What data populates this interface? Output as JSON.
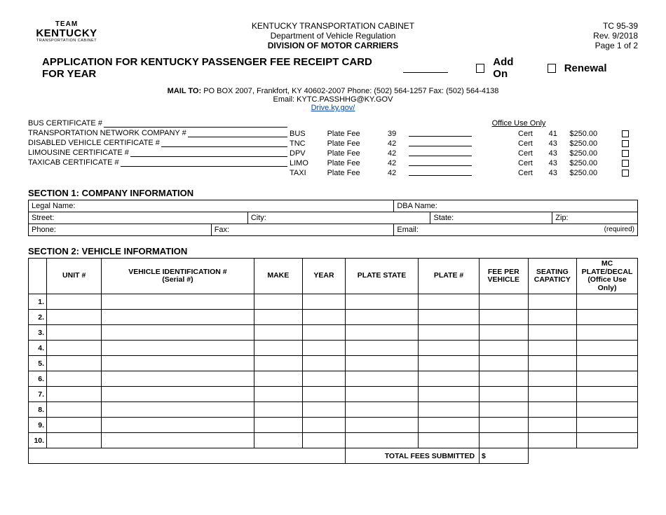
{
  "header": {
    "logo": {
      "line1": "TEAM",
      "line2": "KENTUCKY",
      "sub": "TRANSPORTATION CABINET"
    },
    "center": {
      "l1": "KENTUCKY TRANSPORTATION CABINET",
      "l2": "Department of Vehicle Regulation",
      "l3": "DIVISION OF MOTOR CARRIERS"
    },
    "right": {
      "form_no": "TC 95-39",
      "rev": "Rev. 9/2018",
      "page": "Page 1 of 2"
    }
  },
  "title": {
    "text": "APPLICATION FOR KENTUCKY PASSENGER FEE RECEIPT CARD FOR YEAR",
    "addon": "Add On",
    "renewal": "Renewal"
  },
  "mail": {
    "l1_label": "MAIL TO:",
    "l1": "PO BOX 2007, Frankfort, KY 40602-2007  Phone: (502) 564-1257 Fax: (502) 564-4138",
    "l2": "Email: KYTC.PASSHHG@KY.GOV",
    "link": "Drive.ky.gov/"
  },
  "certs": [
    "BUS CERTIFICATE #",
    "TRANSPORTATION NETWORK COMPANY #",
    "DISABLED VEHICLE CERTIFICATE #",
    "LIMOUSINE CERTIFICATE #",
    "TAXICAB CERTIFICATE #"
  ],
  "office": {
    "title": "Office Use Only",
    "rows": [
      {
        "code": "BUS",
        "label": "Plate Fee",
        "n1": "39",
        "cert": "Cert",
        "n2": "41",
        "amt": "$250.00"
      },
      {
        "code": "TNC",
        "label": "Plate Fee",
        "n1": "42",
        "cert": "Cert",
        "n2": "43",
        "amt": "$250.00"
      },
      {
        "code": "DPV",
        "label": "Plate Fee",
        "n1": "42",
        "cert": "Cert",
        "n2": "43",
        "amt": "$250.00"
      },
      {
        "code": "LIMO",
        "label": "Plate Fee",
        "n1": "42",
        "cert": "Cert",
        "n2": "43",
        "amt": "$250.00"
      },
      {
        "code": "TAXI",
        "label": "Plate Fee",
        "n1": "42",
        "cert": "Cert",
        "n2": "43",
        "amt": "$250.00"
      }
    ]
  },
  "section1": {
    "heading": "SECTION 1: COMPANY INFORMATION",
    "labels": {
      "legal": "Legal Name:",
      "dba": "DBA Name:",
      "street": "Street:",
      "city": "City:",
      "state": "State:",
      "zip": "Zip:",
      "phone": "Phone:",
      "fax": "Fax:",
      "email": "Email:",
      "required": "(required)"
    }
  },
  "section2": {
    "heading": "SECTION 2:  VEHICLE INFORMATION",
    "cols": [
      "",
      "UNIT #",
      "VEHICLE IDENTIFICATION #\n(Serial #)",
      "MAKE",
      "YEAR",
      "PLATE STATE",
      "PLATE #",
      "FEE PER\nVEHICLE",
      "SEATING\nCAPATICY",
      "MC PLATE/DECAL\n(Office Use Only)"
    ],
    "row_nums": [
      "1.",
      "2.",
      "3.",
      "4.",
      "5.",
      "6.",
      "7.",
      "8.",
      "9.",
      "10."
    ],
    "total_label": "TOTAL FEES SUBMITTED",
    "dollar": "$"
  }
}
